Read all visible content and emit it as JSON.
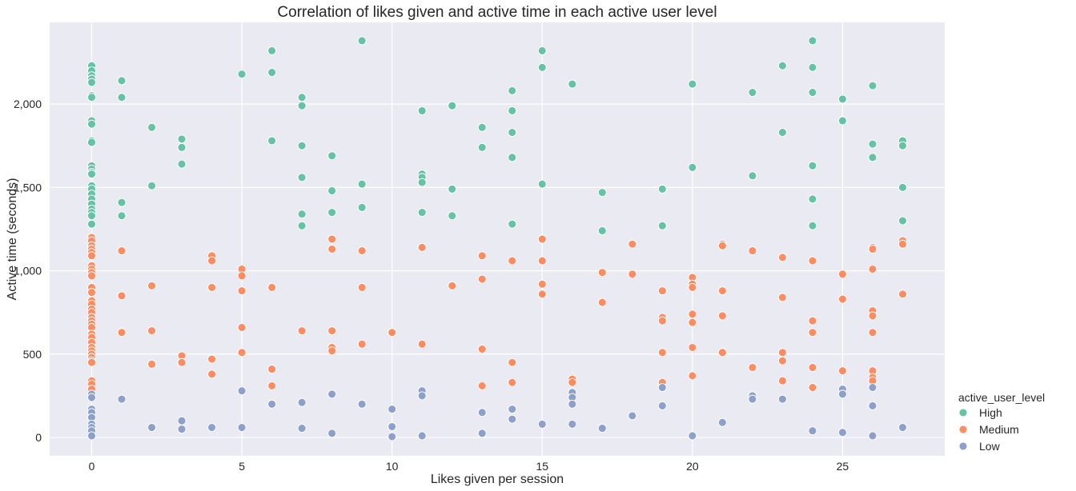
{
  "chart_data": {
    "type": "scatter",
    "title": "Correlation of likes given and active time in each active user level",
    "xlabel": "Likes given per session",
    "ylabel": "Active time (seconds)",
    "xlim": [
      -1.4,
      28.4
    ],
    "ylim": [
      -110,
      2490
    ],
    "xticks": [
      0,
      5,
      10,
      15,
      20,
      25
    ],
    "yticks": [
      0,
      500,
      1000,
      1500,
      2000
    ],
    "ytick_labels": [
      "0",
      "500",
      "1,000",
      "1,500",
      "2,000"
    ],
    "grid": true,
    "legend": {
      "title": "active_user_level",
      "placement": "right"
    },
    "series": [
      {
        "name": "High",
        "color": "#66c2a5",
        "points": [
          [
            0,
            2230
          ],
          [
            0,
            2200
          ],
          [
            0,
            2170
          ],
          [
            0,
            2150
          ],
          [
            0,
            2130
          ],
          [
            0,
            2050
          ],
          [
            0,
            2040
          ],
          [
            0,
            1900
          ],
          [
            0,
            1880
          ],
          [
            0,
            1780
          ],
          [
            0,
            1770
          ],
          [
            0,
            1630
          ],
          [
            0,
            1610
          ],
          [
            0,
            1590
          ],
          [
            0,
            1580
          ],
          [
            0,
            1510
          ],
          [
            0,
            1490
          ],
          [
            0,
            1460
          ],
          [
            0,
            1430
          ],
          [
            0,
            1400
          ],
          [
            0,
            1370
          ],
          [
            0,
            1350
          ],
          [
            0,
            1330
          ],
          [
            0,
            1280
          ],
          [
            1,
            2140
          ],
          [
            1,
            2040
          ],
          [
            1,
            1410
          ],
          [
            1,
            1330
          ],
          [
            2,
            1860
          ],
          [
            2,
            1510
          ],
          [
            3,
            1790
          ],
          [
            3,
            1740
          ],
          [
            3,
            1640
          ],
          [
            5,
            2180
          ],
          [
            6,
            2320
          ],
          [
            6,
            2190
          ],
          [
            6,
            1780
          ],
          [
            7,
            2040
          ],
          [
            7,
            1990
          ],
          [
            7,
            1750
          ],
          [
            7,
            1560
          ],
          [
            7,
            1340
          ],
          [
            7,
            1270
          ],
          [
            8,
            1690
          ],
          [
            8,
            1480
          ],
          [
            8,
            1350
          ],
          [
            9,
            2380
          ],
          [
            9,
            1520
          ],
          [
            9,
            1380
          ],
          [
            11,
            1960
          ],
          [
            11,
            1580
          ],
          [
            11,
            1560
          ],
          [
            11,
            1530
          ],
          [
            11,
            1350
          ],
          [
            12,
            1990
          ],
          [
            12,
            1490
          ],
          [
            12,
            1330
          ],
          [
            13,
            1860
          ],
          [
            13,
            1740
          ],
          [
            14,
            2080
          ],
          [
            14,
            1960
          ],
          [
            14,
            1830
          ],
          [
            14,
            1680
          ],
          [
            14,
            1280
          ],
          [
            15,
            2320
          ],
          [
            15,
            2220
          ],
          [
            15,
            1520
          ],
          [
            16,
            2120
          ],
          [
            17,
            1470
          ],
          [
            17,
            1240
          ],
          [
            19,
            1490
          ],
          [
            19,
            1270
          ],
          [
            20,
            2120
          ],
          [
            20,
            1620
          ],
          [
            22,
            2070
          ],
          [
            22,
            1570
          ],
          [
            23,
            2230
          ],
          [
            23,
            1830
          ],
          [
            24,
            2380
          ],
          [
            24,
            2220
          ],
          [
            24,
            2070
          ],
          [
            24,
            1630
          ],
          [
            24,
            1430
          ],
          [
            24,
            1270
          ],
          [
            25,
            2030
          ],
          [
            25,
            1900
          ],
          [
            26,
            2110
          ],
          [
            26,
            1760
          ],
          [
            26,
            1680
          ],
          [
            27,
            1780
          ],
          [
            27,
            1750
          ],
          [
            27,
            1500
          ],
          [
            27,
            1300
          ]
        ]
      },
      {
        "name": "Medium",
        "color": "#fc8d62",
        "points": [
          [
            0,
            1200
          ],
          [
            0,
            1180
          ],
          [
            0,
            1150
          ],
          [
            0,
            1130
          ],
          [
            0,
            1110
          ],
          [
            0,
            1090
          ],
          [
            0,
            1030
          ],
          [
            0,
            1010
          ],
          [
            0,
            990
          ],
          [
            0,
            970
          ],
          [
            0,
            900
          ],
          [
            0,
            870
          ],
          [
            0,
            820
          ],
          [
            0,
            800
          ],
          [
            0,
            770
          ],
          [
            0,
            750
          ],
          [
            0,
            720
          ],
          [
            0,
            700
          ],
          [
            0,
            680
          ],
          [
            0,
            660
          ],
          [
            0,
            620
          ],
          [
            0,
            600
          ],
          [
            0,
            570
          ],
          [
            0,
            540
          ],
          [
            0,
            520
          ],
          [
            0,
            500
          ],
          [
            0,
            480
          ],
          [
            0,
            460
          ],
          [
            0,
            450
          ],
          [
            0,
            340
          ],
          [
            0,
            320
          ],
          [
            0,
            290
          ],
          [
            1,
            1120
          ],
          [
            1,
            850
          ],
          [
            1,
            630
          ],
          [
            2,
            910
          ],
          [
            2,
            640
          ],
          [
            2,
            440
          ],
          [
            3,
            490
          ],
          [
            3,
            450
          ],
          [
            4,
            1090
          ],
          [
            4,
            1060
          ],
          [
            4,
            900
          ],
          [
            4,
            470
          ],
          [
            4,
            380
          ],
          [
            5,
            1010
          ],
          [
            5,
            970
          ],
          [
            5,
            880
          ],
          [
            5,
            660
          ],
          [
            5,
            510
          ],
          [
            6,
            900
          ],
          [
            6,
            410
          ],
          [
            6,
            310
          ],
          [
            7,
            640
          ],
          [
            8,
            1190
          ],
          [
            8,
            1130
          ],
          [
            8,
            640
          ],
          [
            8,
            540
          ],
          [
            8,
            520
          ],
          [
            9,
            1120
          ],
          [
            9,
            900
          ],
          [
            9,
            560
          ],
          [
            10,
            630
          ],
          [
            11,
            1140
          ],
          [
            11,
            560
          ],
          [
            12,
            910
          ],
          [
            13,
            1090
          ],
          [
            13,
            950
          ],
          [
            13,
            530
          ],
          [
            13,
            310
          ],
          [
            14,
            1060
          ],
          [
            14,
            450
          ],
          [
            14,
            330
          ],
          [
            15,
            1190
          ],
          [
            15,
            1060
          ],
          [
            15,
            920
          ],
          [
            15,
            860
          ],
          [
            16,
            350
          ],
          [
            16,
            330
          ],
          [
            17,
            990
          ],
          [
            17,
            810
          ],
          [
            18,
            1160
          ],
          [
            18,
            980
          ],
          [
            19,
            880
          ],
          [
            19,
            720
          ],
          [
            19,
            700
          ],
          [
            19,
            510
          ],
          [
            19,
            330
          ],
          [
            20,
            960
          ],
          [
            20,
            920
          ],
          [
            20,
            900
          ],
          [
            20,
            740
          ],
          [
            20,
            690
          ],
          [
            20,
            540
          ],
          [
            20,
            370
          ],
          [
            21,
            1160
          ],
          [
            21,
            1150
          ],
          [
            21,
            880
          ],
          [
            21,
            730
          ],
          [
            21,
            510
          ],
          [
            22,
            1120
          ],
          [
            22,
            420
          ],
          [
            23,
            1080
          ],
          [
            23,
            840
          ],
          [
            23,
            510
          ],
          [
            23,
            460
          ],
          [
            23,
            340
          ],
          [
            24,
            1060
          ],
          [
            24,
            700
          ],
          [
            24,
            630
          ],
          [
            24,
            420
          ],
          [
            24,
            300
          ],
          [
            25,
            980
          ],
          [
            25,
            830
          ],
          [
            25,
            400
          ],
          [
            26,
            1140
          ],
          [
            26,
            1130
          ],
          [
            26,
            1010
          ],
          [
            26,
            760
          ],
          [
            26,
            730
          ],
          [
            26,
            630
          ],
          [
            26,
            400
          ],
          [
            26,
            360
          ],
          [
            26,
            340
          ],
          [
            27,
            1180
          ],
          [
            27,
            1160
          ],
          [
            27,
            860
          ]
        ]
      },
      {
        "name": "Low",
        "color": "#8da0cb",
        "points": [
          [
            0,
            260
          ],
          [
            0,
            240
          ],
          [
            0,
            170
          ],
          [
            0,
            150
          ],
          [
            0,
            120
          ],
          [
            0,
            80
          ],
          [
            0,
            60
          ],
          [
            0,
            40
          ],
          [
            0,
            10
          ],
          [
            1,
            230
          ],
          [
            2,
            60
          ],
          [
            3,
            100
          ],
          [
            3,
            50
          ],
          [
            4,
            60
          ],
          [
            5,
            280
          ],
          [
            5,
            60
          ],
          [
            6,
            200
          ],
          [
            7,
            210
          ],
          [
            7,
            55
          ],
          [
            8,
            260
          ],
          [
            8,
            25
          ],
          [
            9,
            200
          ],
          [
            10,
            170
          ],
          [
            10,
            65
          ],
          [
            10,
            5
          ],
          [
            11,
            280
          ],
          [
            11,
            250
          ],
          [
            11,
            10
          ],
          [
            13,
            150
          ],
          [
            13,
            25
          ],
          [
            14,
            170
          ],
          [
            14,
            110
          ],
          [
            15,
            80
          ],
          [
            16,
            270
          ],
          [
            16,
            240
          ],
          [
            16,
            200
          ],
          [
            16,
            80
          ],
          [
            17,
            55
          ],
          [
            18,
            130
          ],
          [
            19,
            300
          ],
          [
            19,
            190
          ],
          [
            20,
            10
          ],
          [
            21,
            90
          ],
          [
            22,
            250
          ],
          [
            22,
            230
          ],
          [
            23,
            230
          ],
          [
            24,
            40
          ],
          [
            25,
            290
          ],
          [
            25,
            260
          ],
          [
            25,
            30
          ],
          [
            26,
            300
          ],
          [
            26,
            190
          ],
          [
            26,
            10
          ],
          [
            27,
            60
          ]
        ]
      }
    ]
  }
}
